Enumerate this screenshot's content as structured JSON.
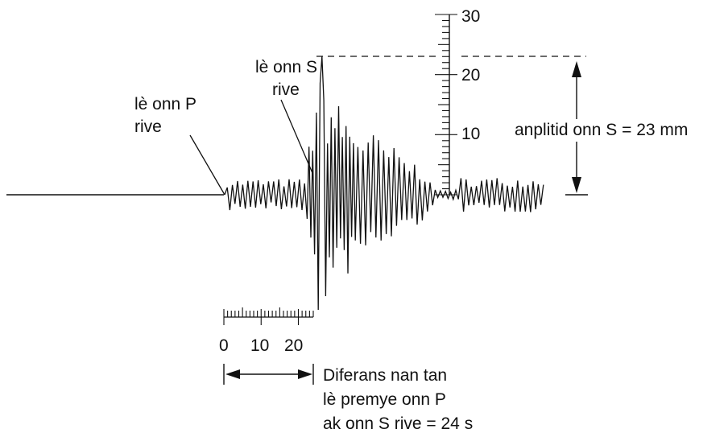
{
  "labels": {
    "p_wave": [
      "lè onn P",
      "rive"
    ],
    "s_wave": [
      "lè onn S",
      "rive"
    ],
    "amplitude": "anplitid onn S = 23 mm",
    "time_difference": [
      "Diferans nan tan",
      "lè premye onn P",
      "ak onn S rive = 24 s"
    ]
  },
  "amplitude_scale": {
    "ticks": [
      "10",
      "20",
      "30"
    ],
    "unit": "mm",
    "max": 30
  },
  "time_scale": {
    "ticks": [
      "0",
      "10",
      "20"
    ],
    "unit": "s",
    "max": 24
  },
  "colors": {
    "ink": "#111111",
    "background": "#ffffff"
  }
}
